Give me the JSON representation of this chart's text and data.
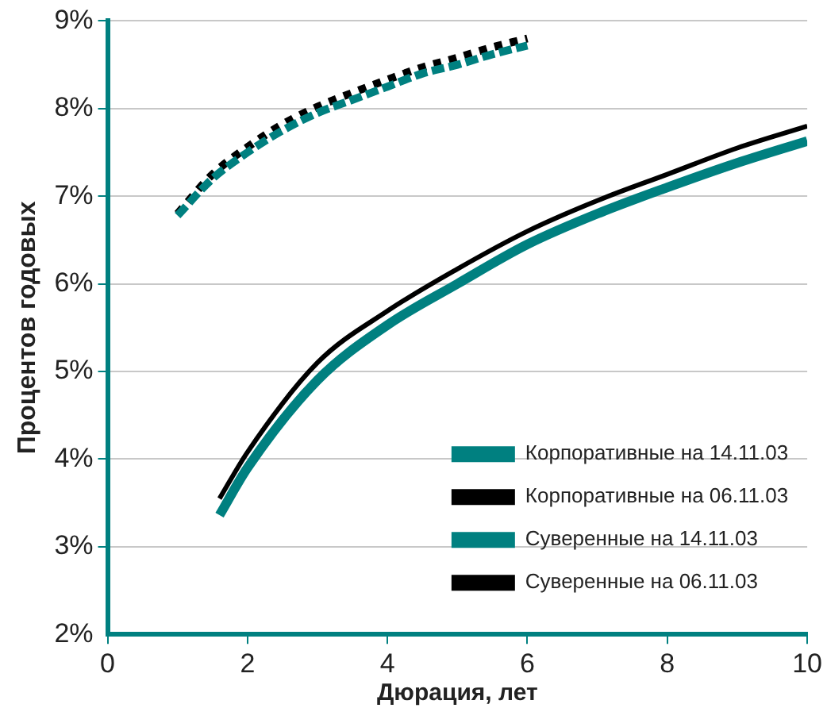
{
  "chart_data": {
    "type": "line",
    "xlabel": "Дюрация, лет",
    "ylabel": "Процентов годовых",
    "xlim": [
      0,
      10
    ],
    "xticks": [
      0,
      2,
      4,
      6,
      8,
      10
    ],
    "ylim": [
      2,
      9
    ],
    "yticks": [
      {
        "value": 2,
        "label": "2%"
      },
      {
        "value": 3,
        "label": "3%"
      },
      {
        "value": 4,
        "label": "4%"
      },
      {
        "value": 5,
        "label": "5%"
      },
      {
        "value": 6,
        "label": "6%"
      },
      {
        "value": 7,
        "label": "7%"
      },
      {
        "value": 8,
        "label": "8%"
      },
      {
        "value": 9,
        "label": "9%"
      }
    ],
    "grid": "y",
    "legend": "bottom right",
    "marker": "none",
    "series": [
      {
        "name": "Корпоративные на 14.11.03",
        "color": "#008080",
        "line_style": "dashed",
        "x": [
          1,
          1.5,
          2,
          2.5,
          3,
          3.5,
          4,
          4.5,
          5,
          5.5,
          6
        ],
        "values": [
          6.78,
          7.2,
          7.5,
          7.75,
          7.95,
          8.1,
          8.25,
          8.4,
          8.5,
          8.62,
          8.72
        ]
      },
      {
        "name": "Корпоративные на 06.11.03",
        "color": "#000000",
        "line_style": "dotted",
        "x": [
          1,
          1.5,
          2,
          2.5,
          3,
          3.5,
          4,
          4.5,
          5,
          5.5,
          6
        ],
        "values": [
          6.8,
          7.25,
          7.56,
          7.82,
          8.02,
          8.18,
          8.33,
          8.47,
          8.58,
          8.7,
          8.8
        ]
      },
      {
        "name": "Суверенные на 14.11.03",
        "color": "#008080",
        "line_style": "solid",
        "x": [
          1.6,
          2,
          3,
          4,
          5,
          6,
          7,
          8,
          9,
          10
        ],
        "values": [
          3.36,
          3.9,
          4.9,
          5.53,
          6.0,
          6.45,
          6.8,
          7.1,
          7.38,
          7.63
        ]
      },
      {
        "name": "Суверенные на 06.11.03",
        "color": "#000000",
        "line_style": "solid",
        "x": [
          1.6,
          2,
          3,
          4,
          5,
          6,
          7,
          8,
          9,
          10
        ],
        "values": [
          3.55,
          4.08,
          5.1,
          5.69,
          6.17,
          6.6,
          6.95,
          7.25,
          7.55,
          7.8
        ]
      }
    ]
  }
}
